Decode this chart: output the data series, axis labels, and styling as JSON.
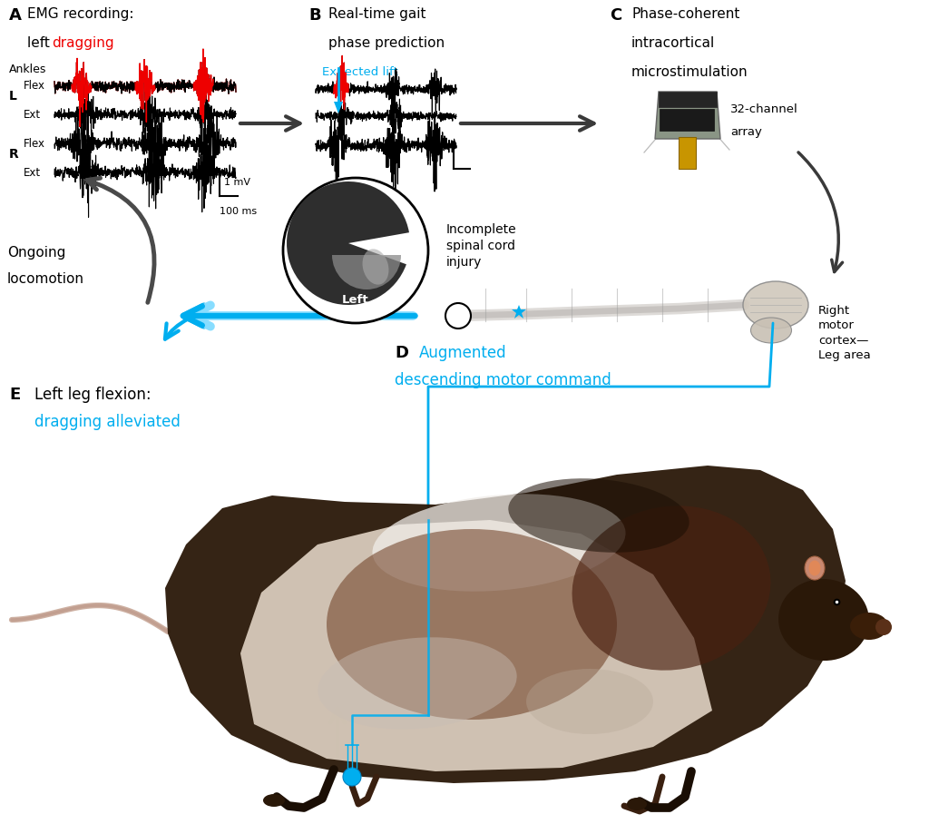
{
  "background_color": "#ffffff",
  "cyan_color": "#00AEEF",
  "red_color": "#EE0000",
  "dark_gray": "#2a2a2a",
  "arrow_gray": "#555555",
  "panel_labels": [
    "A",
    "B",
    "C",
    "D",
    "E"
  ],
  "A_title1": "EMG recording:",
  "A_title2a": "left ",
  "A_title2b": "dragging",
  "A_ankles": "Ankles",
  "A_L": "L",
  "A_R": "R",
  "A_flex": "Flex",
  "A_ext": "Ext",
  "A_scale_v": "1 mV",
  "A_scale_t": "100 ms",
  "B_title": "Real-time gait\nphase prediction",
  "B_expected": "Expected lift",
  "C_title": "Phase-coherent\nintracortical\nmicrostimulation",
  "C_array": "32-channel\narray",
  "D_label": "D",
  "D_title1": "Augmented",
  "D_title2": "descending motor command",
  "E_label": "E",
  "E_title1": "Left leg flexion:",
  "E_title2": "dragging alleviated",
  "ongoing": "Ongoing\nlocomotion",
  "sci": "Incomplete\nspinal cord\ninjury",
  "right_motor": "Right\nmotor\ncortex—\nLeg area",
  "rat_body_color": "#2a1808",
  "rat_dark": "#1a0e04",
  "rat_belly": "#ddd0c0",
  "rat_white": "#f0ece8",
  "rat_brown1": "#6b3a1f",
  "rat_brown2": "#4a2010",
  "rat_gray1": "#c8bdb5",
  "rat_gray2": "#b8a898",
  "rat_tail": "#c8a898",
  "rat_ear": "#c88870",
  "device_body": "#8a9585",
  "device_dark": "#252525",
  "device_yellow": "#c89500"
}
